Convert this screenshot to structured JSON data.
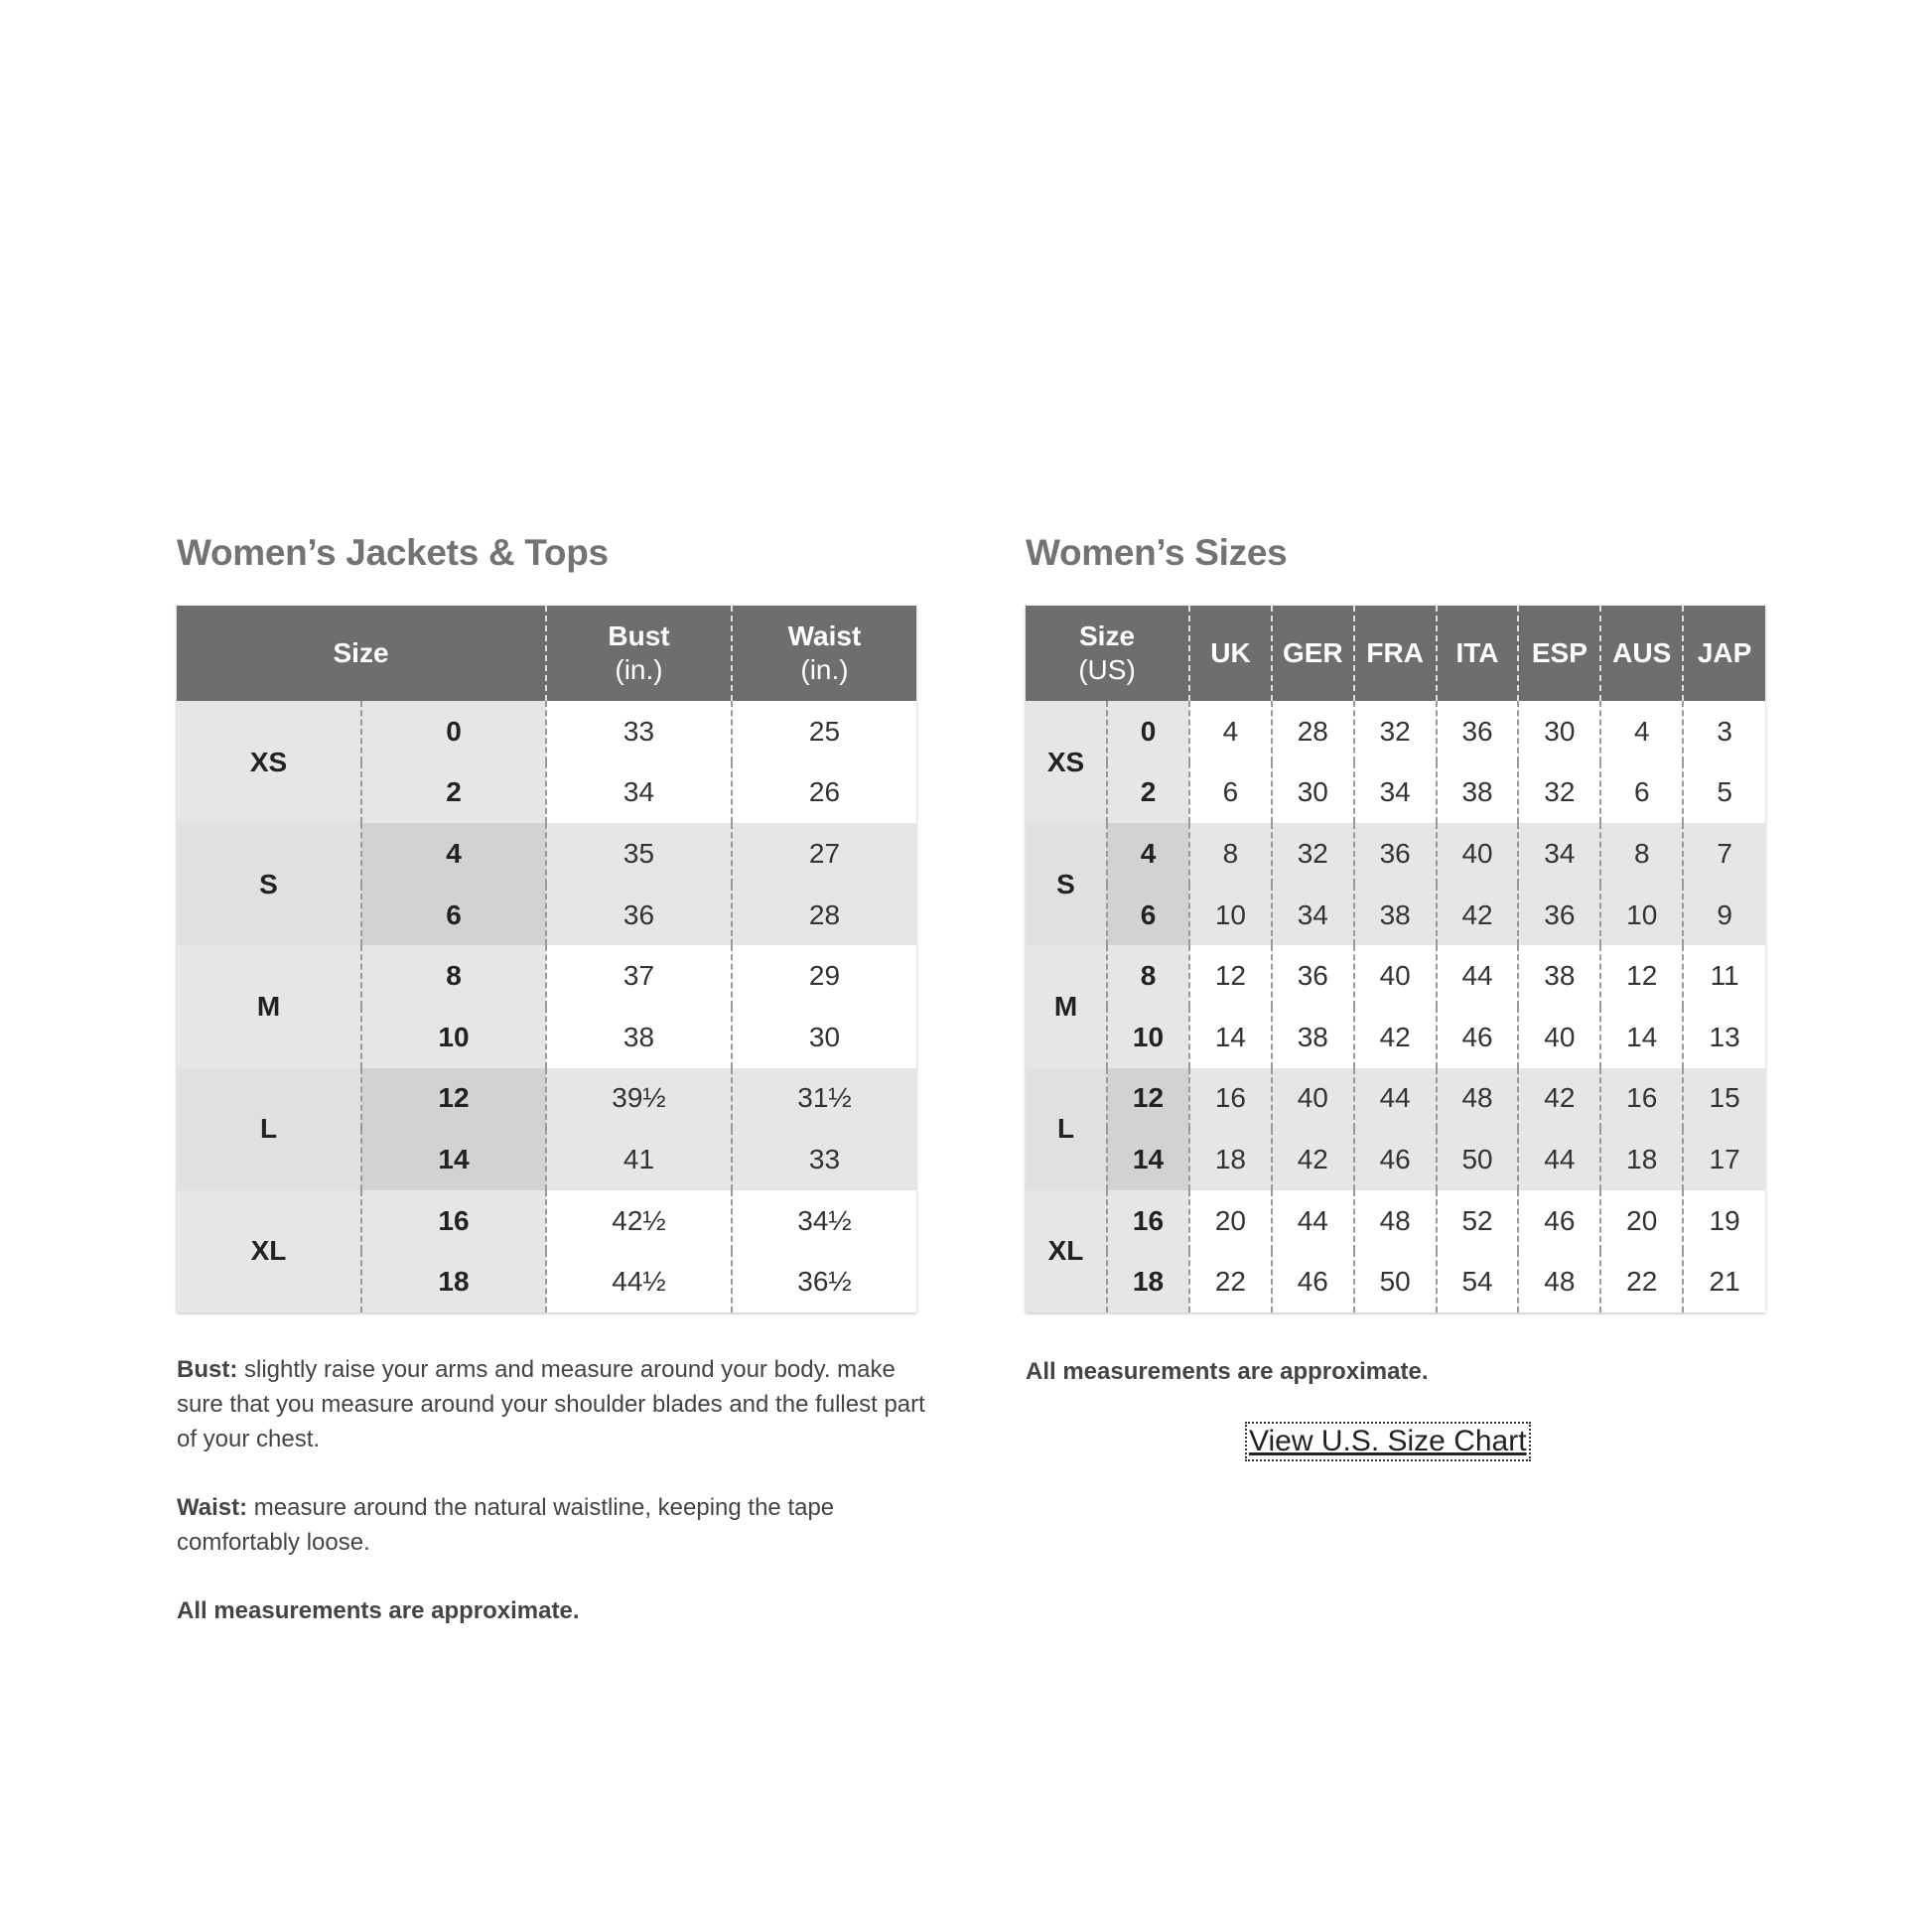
{
  "jackets": {
    "title": "Women’s Jackets & Tops",
    "headers": {
      "size": "Size",
      "bust": "Bust",
      "bust_unit": "(in.)",
      "waist": "Waist",
      "waist_unit": "(in.)"
    },
    "groups": [
      {
        "label": "XS",
        "rows": [
          [
            "0",
            "33",
            "25"
          ],
          [
            "2",
            "34",
            "26"
          ]
        ]
      },
      {
        "label": "S",
        "rows": [
          [
            "4",
            "35",
            "27"
          ],
          [
            "6",
            "36",
            "28"
          ]
        ]
      },
      {
        "label": "M",
        "rows": [
          [
            "8",
            "37",
            "29"
          ],
          [
            "10",
            "38",
            "30"
          ]
        ]
      },
      {
        "label": "L",
        "rows": [
          [
            "12",
            "39½",
            "31½"
          ],
          [
            "14",
            "41",
            "33"
          ]
        ]
      },
      {
        "label": "XL",
        "rows": [
          [
            "16",
            "42½",
            "34½"
          ],
          [
            "18",
            "44½",
            "36½"
          ]
        ]
      }
    ],
    "notes": {
      "bust_label": "Bust:",
      "bust_text": " slightly raise your arms and measure around your body. make sure that you measure around your shoulder blades and the fullest part of your chest.",
      "waist_label": "Waist:",
      "waist_text": " measure around the natural waistline, keeping the tape comfortably loose.",
      "approx": "All measurements are approximate."
    }
  },
  "sizes": {
    "title": "Women’s Sizes",
    "size_header": "Size",
    "size_header_unit": "(US)",
    "columns": [
      "UK",
      "GER",
      "FRA",
      "ITA",
      "ESP",
      "AUS",
      "JAP"
    ],
    "groups": [
      {
        "label": "XS",
        "rows": [
          [
            "0",
            "4",
            "28",
            "32",
            "36",
            "30",
            "4",
            "3"
          ],
          [
            "2",
            "6",
            "30",
            "34",
            "38",
            "32",
            "6",
            "5"
          ]
        ]
      },
      {
        "label": "S",
        "rows": [
          [
            "4",
            "8",
            "32",
            "36",
            "40",
            "34",
            "8",
            "7"
          ],
          [
            "6",
            "10",
            "34",
            "38",
            "42",
            "36",
            "10",
            "9"
          ]
        ]
      },
      {
        "label": "M",
        "rows": [
          [
            "8",
            "12",
            "36",
            "40",
            "44",
            "38",
            "12",
            "11"
          ],
          [
            "10",
            "14",
            "38",
            "42",
            "46",
            "40",
            "14",
            "13"
          ]
        ]
      },
      {
        "label": "L",
        "rows": [
          [
            "12",
            "16",
            "40",
            "44",
            "48",
            "42",
            "16",
            "15"
          ],
          [
            "14",
            "18",
            "42",
            "46",
            "50",
            "44",
            "18",
            "17"
          ]
        ]
      },
      {
        "label": "XL",
        "rows": [
          [
            "16",
            "20",
            "44",
            "48",
            "52",
            "46",
            "20",
            "19"
          ],
          [
            "18",
            "22",
            "46",
            "50",
            "54",
            "48",
            "22",
            "21"
          ]
        ]
      }
    ],
    "approx": "All measurements are approximate.",
    "link": "View U.S. Size Chart"
  }
}
